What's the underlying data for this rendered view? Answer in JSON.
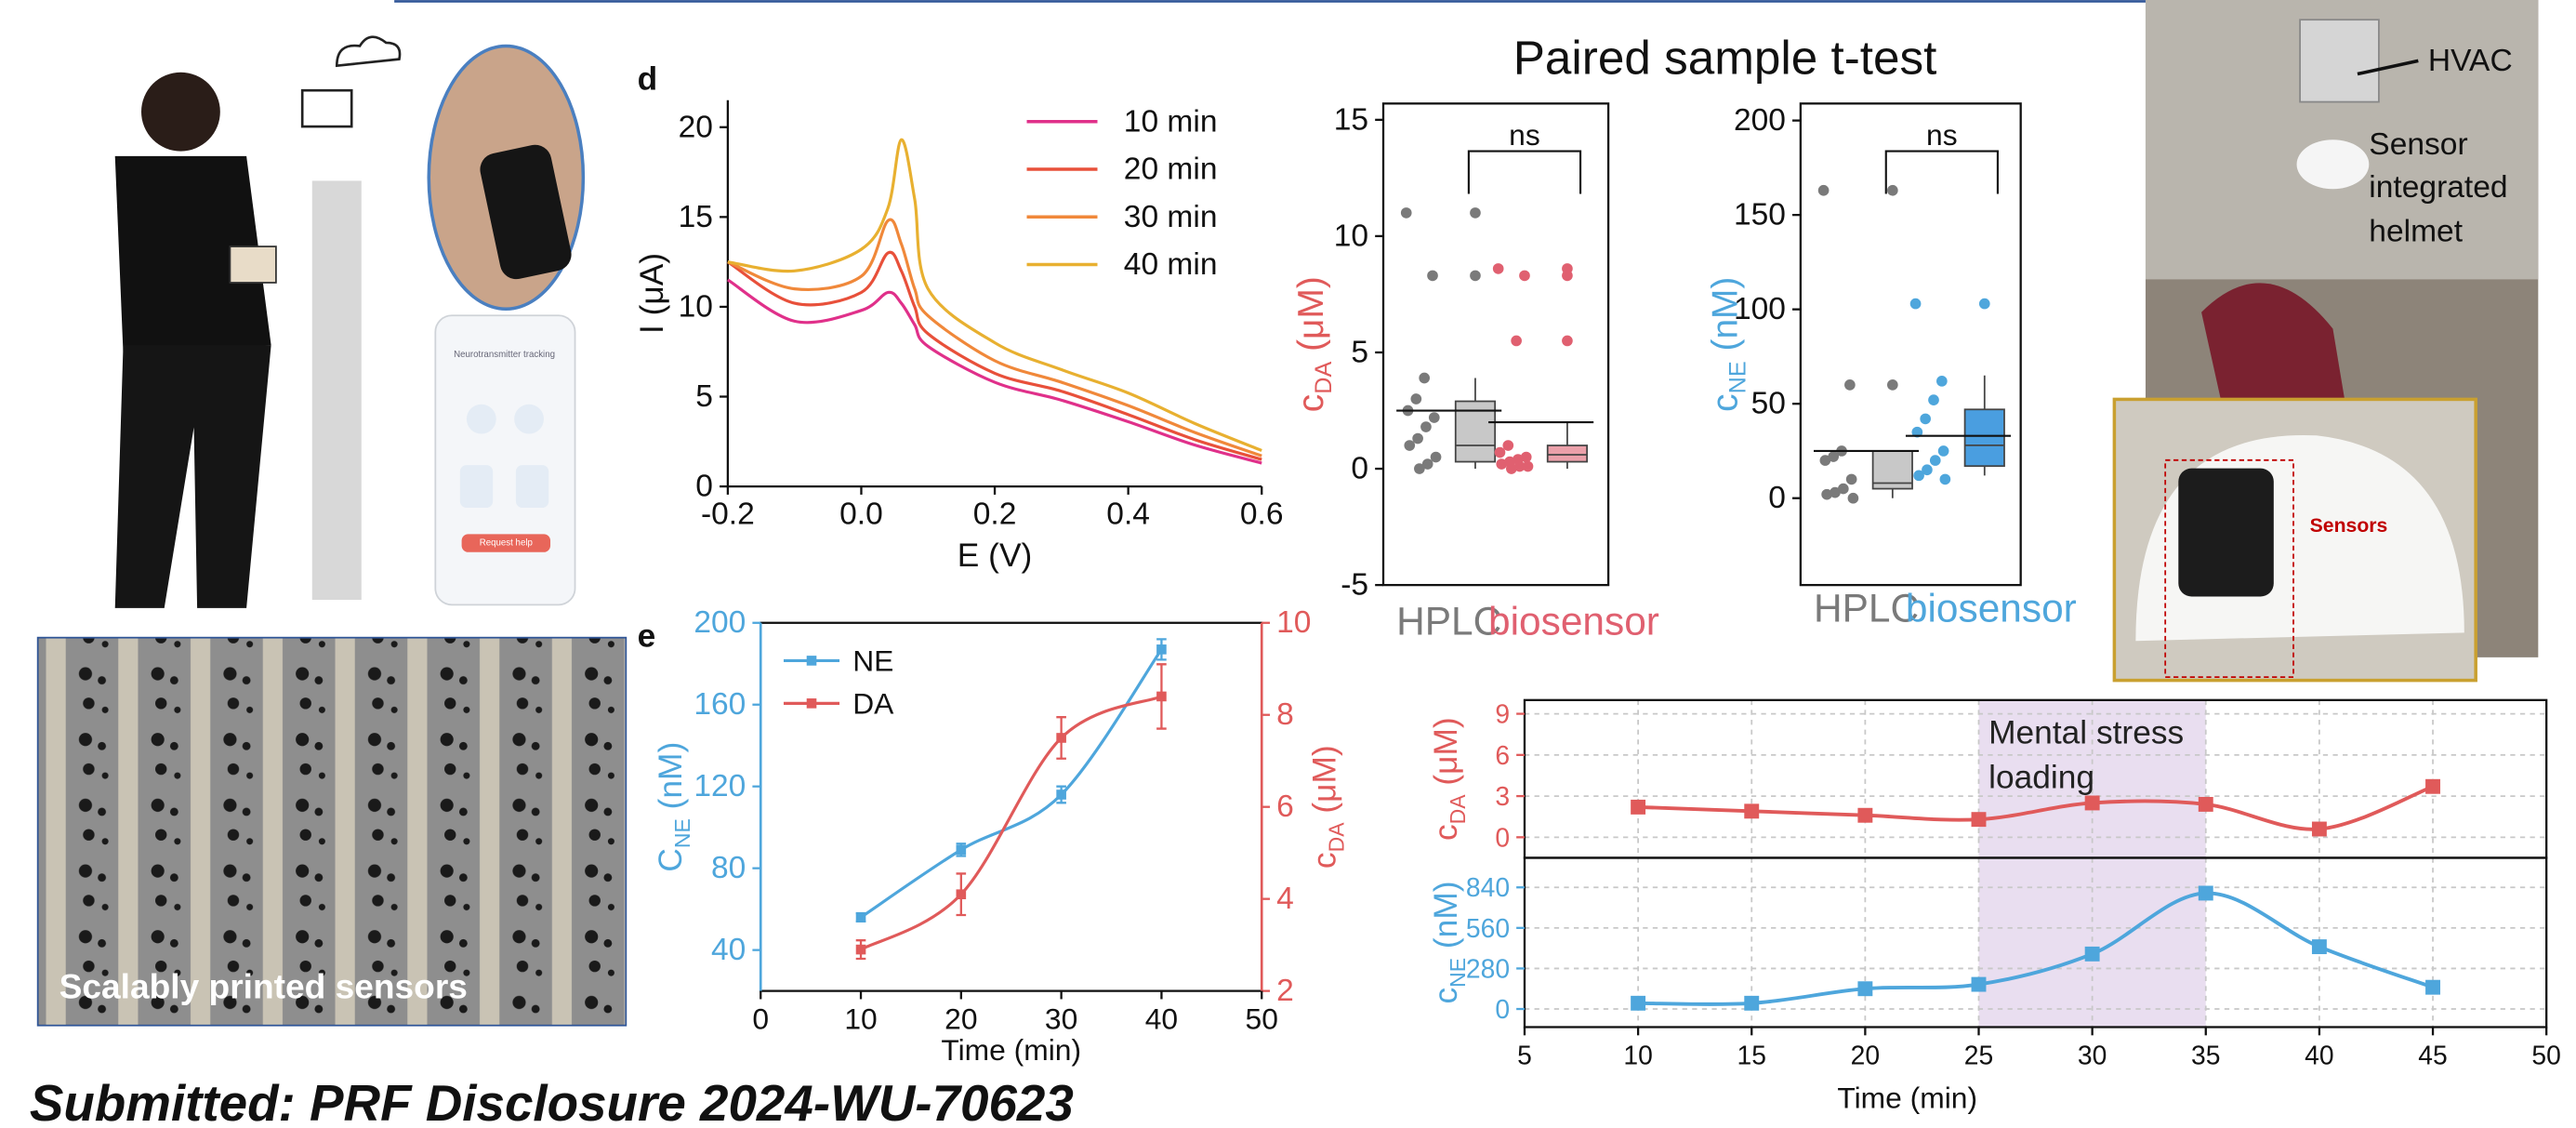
{
  "header": {
    "test_title": "Paired sample t-test",
    "panel_d": "d",
    "panel_e": "e",
    "footer": "Submitted: PRF Disclosure 2024-WU-70623"
  },
  "photos": {
    "printed_caption": "Scalably printed sensors",
    "hvac": "HVAC",
    "helmet_label": [
      "Sensor",
      "integrated",
      "helmet"
    ],
    "sensors": "Sensors",
    "app_title": "Neurotransmitter tracking",
    "app_button": "Request help"
  },
  "chart_data": [
    {
      "type": "line",
      "xlabel": "E (V)",
      "ylabel": "I (μA)",
      "xlim": [
        -0.2,
        0.6
      ],
      "ylim": [
        0,
        21.5
      ],
      "xticks": [
        -0.2,
        {
          "value": 0,
          "label": "0.0"
        },
        0.2,
        0.4,
        0.6
      ],
      "yticks": [
        0,
        5,
        10,
        15,
        20
      ],
      "x": [
        -0.2,
        -0.1,
        0,
        0.04,
        0.06,
        0.08,
        0.1,
        0.2,
        0.3,
        0.4,
        0.5,
        0.6
      ],
      "series": [
        {
          "name": "10 min",
          "color": "#e0308a",
          "values": [
            11.5,
            9.2,
            9.8,
            10.8,
            10.2,
            9.0,
            7.8,
            5.8,
            4.8,
            3.6,
            2.3,
            1.3
          ]
        },
        {
          "name": "20 min",
          "color": "#e8503a",
          "values": [
            12.5,
            10.2,
            10.8,
            13.0,
            12.0,
            10.0,
            8.5,
            6.3,
            5.3,
            4.0,
            2.6,
            1.5
          ]
        },
        {
          "name": "30 min",
          "color": "#f0883a",
          "values": [
            12.5,
            11.0,
            11.7,
            14.8,
            13.5,
            11.0,
            9.5,
            7.0,
            5.8,
            4.5,
            3.0,
            1.7
          ]
        },
        {
          "name": "40 min",
          "color": "#e8b030",
          "values": [
            12.5,
            12.0,
            13.2,
            15.5,
            19.3,
            16.0,
            11.0,
            8.0,
            6.5,
            5.2,
            3.5,
            2.0
          ]
        }
      ]
    },
    {
      "type": "box",
      "ylabel": {
        "main": "c",
        "sub": "DA",
        "unit": " (μM)"
      },
      "label_color": "#e05a5a",
      "ylim": [
        -5,
        15.7
      ],
      "yticks": [
        -5,
        0,
        5,
        10,
        15
      ],
      "significance": "ns",
      "groups": [
        {
          "name": "HPLC",
          "color": "#7a7a7a",
          "box_color": "#c8c8c8",
          "points": [
            11.0,
            8.3,
            3.9,
            3.0,
            2.5,
            2.2,
            1.8,
            1.3,
            1.0,
            0.5,
            0.2,
            0.0
          ],
          "box": {
            "whisker_low": 0.0,
            "q1": 0.3,
            "median": 1.0,
            "q3": 2.9,
            "whisker_high": 3.9
          },
          "outliers": [
            8.3,
            11.0
          ],
          "mean": 2.5
        },
        {
          "name": "biosensor",
          "color": "#e06070",
          "box_color": "#eba0aa",
          "points": [
            8.6,
            8.3,
            5.5,
            1.0,
            0.7,
            0.5,
            0.4,
            0.3,
            0.2,
            0.1,
            0.1,
            0.0
          ],
          "box": {
            "whisker_low": 0.0,
            "q1": 0.3,
            "median": 0.6,
            "q3": 1.0,
            "whisker_high": 2.0
          },
          "outliers": [
            5.5,
            8.3,
            8.6
          ],
          "mean": 2.0
        }
      ]
    },
    {
      "type": "box",
      "ylabel": {
        "main": "c",
        "sub": "NE",
        "unit": " (nM)"
      },
      "label_color": "#4ea6dc",
      "ylim": [
        -46,
        209
      ],
      "yticks": [
        0,
        50,
        100,
        150,
        200
      ],
      "significance": "ns",
      "groups": [
        {
          "name": "HPLC",
          "color": "#7a7a7a",
          "box_color": "#c8c8c8",
          "points": [
            163,
            60,
            25,
            22,
            20,
            10,
            5,
            3,
            2,
            0
          ],
          "box": {
            "whisker_low": 0,
            "q1": 5,
            "median": 8,
            "q3": 25,
            "whisker_high": 25
          },
          "outliers": [
            60,
            163
          ],
          "mean": 25
        },
        {
          "name": "biosensor",
          "color": "#4ea6dc",
          "box_color": "#4a9ee0",
          "points": [
            103,
            62,
            52,
            42,
            35,
            25,
            20,
            15,
            12,
            10
          ],
          "box": {
            "whisker_low": 12,
            "q1": 17,
            "median": 28,
            "q3": 47,
            "whisker_high": 65
          },
          "outliers": [
            103
          ],
          "mean": 33
        }
      ]
    },
    {
      "type": "dual_line",
      "xlabel": "Time (min)",
      "ylabel": {
        "main": "C",
        "sub": "NE",
        "unit": " (nM)"
      },
      "y2label": {
        "main": "c",
        "sub": "DA",
        "unit": " (μM)"
      },
      "xlim": [
        0,
        50
      ],
      "ylim": [
        20,
        200
      ],
      "y2lim": [
        2,
        10
      ],
      "xticks": [
        0,
        10,
        20,
        30,
        40,
        50
      ],
      "yticks": [
        40,
        80,
        120,
        160,
        200
      ],
      "y2ticks": [
        2,
        4,
        6,
        8,
        10
      ],
      "legend": "top-left",
      "x": [
        10,
        20,
        30,
        40
      ],
      "series": [
        {
          "name": "NE",
          "color": "#4ea6dc",
          "values": [
            56,
            89,
            116,
            187
          ],
          "errors": [
            2,
            3,
            4,
            5
          ]
        },
        {
          "name": "DA",
          "color": "#e05a5a",
          "axis": "y2",
          "values": [
            2.9,
            4.1,
            7.5,
            8.4
          ],
          "errors": [
            0.2,
            0.45,
            0.45,
            0.7
          ]
        }
      ]
    },
    {
      "type": "stacked_time",
      "xlabel": "Time (min)",
      "xlim": [
        5,
        50
      ],
      "xticks": [
        5,
        10,
        15,
        20,
        25,
        30,
        35,
        40,
        45,
        50
      ],
      "grid": true,
      "highlight_x": [
        25,
        35
      ],
      "annotation": [
        "Mental stress",
        "loading"
      ],
      "x": [
        10,
        15,
        20,
        25,
        30,
        35,
        40,
        45
      ],
      "panels": [
        {
          "ylabel": {
            "main": "c",
            "sub": "DA",
            "unit": " (μM)"
          },
          "ylim": [
            -1.5,
            10
          ],
          "yticks": [
            0,
            3,
            6,
            9
          ],
          "series": [
            {
              "color": "#e05a5a",
              "values": [
                2.2,
                1.9,
                1.6,
                1.3,
                2.5,
                2.4,
                0.6,
                3.7
              ]
            }
          ]
        },
        {
          "ylabel": {
            "main": "c",
            "sub": "NE",
            "unit": " (nM)"
          },
          "ylim": [
            -125,
            1044
          ],
          "yticks": [
            0,
            280,
            560,
            840
          ],
          "series": [
            {
              "color": "#4ea6dc",
              "values": [
                40,
                40,
                140,
                170,
                380,
                800,
                430,
                150
              ]
            }
          ]
        }
      ]
    }
  ]
}
